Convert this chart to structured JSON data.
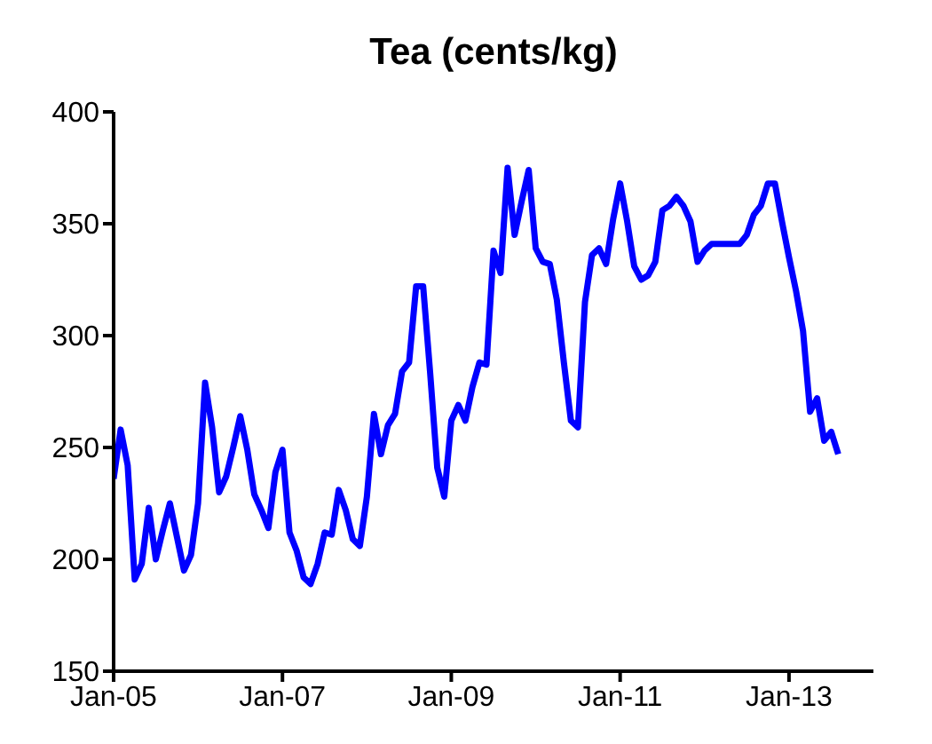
{
  "chart_data": {
    "type": "line",
    "title": "Tea (cents/kg)",
    "x": [
      "2005-01",
      "2005-02",
      "2005-03",
      "2005-04",
      "2005-05",
      "2005-06",
      "2005-07",
      "2005-08",
      "2005-09",
      "2005-10",
      "2005-11",
      "2005-12",
      "2006-01",
      "2006-02",
      "2006-03",
      "2006-04",
      "2006-05",
      "2006-06",
      "2006-07",
      "2006-08",
      "2006-09",
      "2006-10",
      "2006-11",
      "2006-12",
      "2007-01",
      "2007-02",
      "2007-03",
      "2007-04",
      "2007-05",
      "2007-06",
      "2007-07",
      "2007-08",
      "2007-09",
      "2007-10",
      "2007-11",
      "2007-12",
      "2008-01",
      "2008-02",
      "2008-03",
      "2008-04",
      "2008-05",
      "2008-06",
      "2008-07",
      "2008-08",
      "2008-09",
      "2008-10",
      "2008-11",
      "2008-12",
      "2009-01",
      "2009-02",
      "2009-03",
      "2009-04",
      "2009-05",
      "2009-06",
      "2009-07",
      "2009-08",
      "2009-09",
      "2009-10",
      "2009-11",
      "2009-12",
      "2010-01",
      "2010-02",
      "2010-03",
      "2010-04",
      "2010-05",
      "2010-06",
      "2010-07",
      "2010-08",
      "2010-09",
      "2010-10",
      "2010-11",
      "2010-12",
      "2011-01",
      "2011-02",
      "2011-03",
      "2011-04",
      "2011-05",
      "2011-06",
      "2011-07",
      "2011-08",
      "2011-09",
      "2011-10",
      "2011-11",
      "2011-12",
      "2012-01",
      "2012-02",
      "2012-03",
      "2012-04",
      "2012-05",
      "2012-06",
      "2012-07",
      "2012-08",
      "2012-09",
      "2012-10",
      "2012-11",
      "2012-12",
      "2013-01",
      "2013-02",
      "2013-03",
      "2013-04",
      "2013-05",
      "2013-06",
      "2013-07",
      "2013-08"
    ],
    "series": [
      {
        "color": "#0000ff",
        "values": [
          236,
          258,
          242,
          191,
          198,
          223,
          200,
          213,
          225,
          210,
          195,
          202,
          225,
          279,
          259,
          230,
          237,
          250,
          264,
          249,
          229,
          222,
          214,
          239,
          249,
          212,
          204,
          192,
          189,
          198,
          212,
          211,
          231,
          222,
          209,
          206,
          228,
          265,
          247,
          260,
          265,
          284,
          288,
          322,
          322,
          283,
          241,
          228,
          262,
          269,
          262,
          277,
          288,
          287,
          338,
          328,
          375,
          345,
          360,
          374,
          339,
          333,
          332,
          316,
          288,
          262,
          259,
          315,
          336,
          339,
          332,
          352,
          368,
          351,
          331,
          325,
          327,
          333,
          356,
          358,
          362,
          358,
          351,
          333,
          338,
          341,
          341,
          341,
          341,
          341,
          345,
          354,
          358,
          368,
          368,
          351,
          335,
          320,
          302,
          266,
          272,
          253,
          257,
          247
        ]
      }
    ],
    "xlim": [
      "2005-01",
      "2014-01"
    ],
    "xticks": [
      {
        "value": "2005-01",
        "label": "Jan-05"
      },
      {
        "value": "2007-01",
        "label": "Jan-07"
      },
      {
        "value": "2009-01",
        "label": "Jan-09"
      },
      {
        "value": "2011-01",
        "label": "Jan-11"
      },
      {
        "value": "2013-01",
        "label": "Jan-13"
      }
    ],
    "ylim": [
      150,
      400
    ],
    "yticks": [
      150,
      200,
      250,
      300,
      350,
      400
    ],
    "grid": false,
    "legend": false,
    "marker": "none",
    "line_style": "solid"
  }
}
